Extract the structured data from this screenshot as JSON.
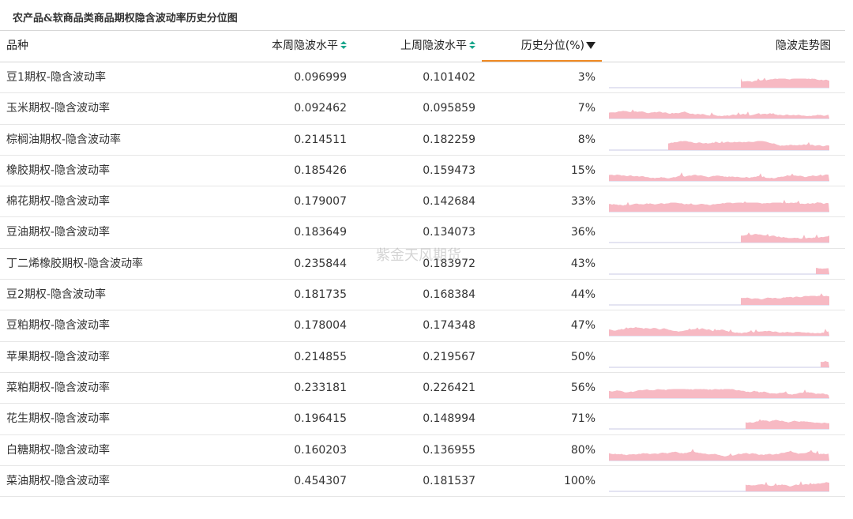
{
  "title": "农产品&软商品类商品期权隐含波动率历史分位图",
  "watermark": "紫金天风期货",
  "colors": {
    "spark_fill": "#f7b9c3",
    "spark_base": "#c9c9e6",
    "sort_accent": "#1aa68c",
    "active_underline": "#f08a24"
  },
  "headers": {
    "name": "品种",
    "current": "本周隐波水平",
    "previous": "上周隐波水平",
    "percentile": "历史分位(%)",
    "chart": "隐波走势图"
  },
  "rows": [
    {
      "name": "豆1期权-隐含波动率",
      "current": "0.096999",
      "previous": "0.101402",
      "percentile": "3%",
      "spark_start": 0.6,
      "spark_seed": 1
    },
    {
      "name": "玉米期权-隐含波动率",
      "current": "0.092462",
      "previous": "0.095859",
      "percentile": "7%",
      "spark_start": 0.0,
      "spark_seed": 2
    },
    {
      "name": "棕榈油期权-隐含波动率",
      "current": "0.214511",
      "previous": "0.182259",
      "percentile": "8%",
      "spark_start": 0.27,
      "spark_seed": 3
    },
    {
      "name": "橡胶期权-隐含波动率",
      "current": "0.185426",
      "previous": "0.159473",
      "percentile": "15%",
      "spark_start": 0.0,
      "spark_seed": 4
    },
    {
      "name": "棉花期权-隐含波动率",
      "current": "0.179007",
      "previous": "0.142684",
      "percentile": "33%",
      "spark_start": 0.0,
      "spark_seed": 5
    },
    {
      "name": "豆油期权-隐含波动率",
      "current": "0.183649",
      "previous": "0.134073",
      "percentile": "36%",
      "spark_start": 0.6,
      "spark_seed": 6
    },
    {
      "name": "丁二烯橡胶期权-隐含波动率",
      "current": "0.235844",
      "previous": "0.183972",
      "percentile": "43%",
      "spark_start": 0.94,
      "spark_seed": 7
    },
    {
      "name": "豆2期权-隐含波动率",
      "current": "0.181735",
      "previous": "0.168384",
      "percentile": "44%",
      "spark_start": 0.6,
      "spark_seed": 8
    },
    {
      "name": "豆粕期权-隐含波动率",
      "current": "0.178004",
      "previous": "0.174348",
      "percentile": "47%",
      "spark_start": 0.0,
      "spark_seed": 9
    },
    {
      "name": "苹果期权-隐含波动率",
      "current": "0.214855",
      "previous": "0.219567",
      "percentile": "50%",
      "spark_start": 0.96,
      "spark_seed": 10
    },
    {
      "name": "菜粕期权-隐含波动率",
      "current": "0.233181",
      "previous": "0.226421",
      "percentile": "56%",
      "spark_start": 0.0,
      "spark_seed": 11
    },
    {
      "name": "花生期权-隐含波动率",
      "current": "0.196415",
      "previous": "0.148994",
      "percentile": "71%",
      "spark_start": 0.62,
      "spark_seed": 12
    },
    {
      "name": "白糖期权-隐含波动率",
      "current": "0.160203",
      "previous": "0.136955",
      "percentile": "80%",
      "spark_start": 0.0,
      "spark_seed": 13
    },
    {
      "name": "菜油期权-隐含波动率",
      "current": "0.454307",
      "previous": "0.181537",
      "percentile": "100%",
      "spark_start": 0.62,
      "spark_seed": 14
    }
  ]
}
